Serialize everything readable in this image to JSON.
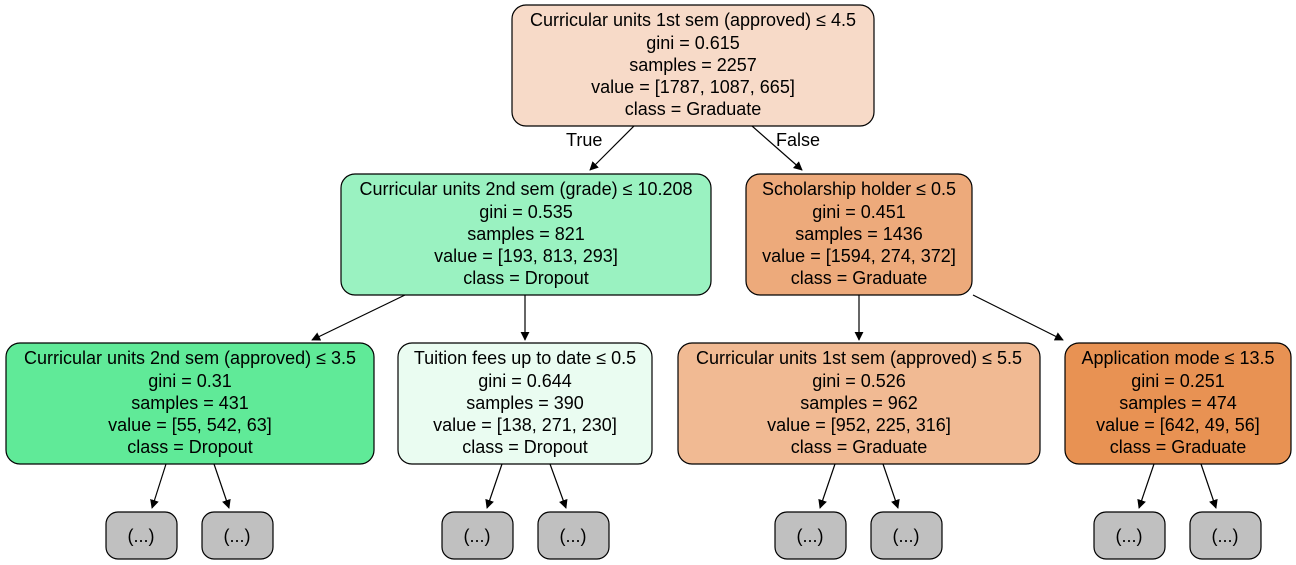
{
  "tree": {
    "nodes": [
      {
        "id": "n0",
        "lines": [
          "Curricular units 1st sem (approved) ≤ 4.5",
          "gini = 0.615",
          "samples = 2257",
          "value = [1787, 1087, 665]",
          "class = Graduate"
        ],
        "fill": "#f7dac8"
      },
      {
        "id": "n1",
        "lines": [
          "Curricular units 2nd sem (grade) ≤ 10.208",
          "gini = 0.535",
          "samples = 821",
          "value = [193, 813, 293]",
          "class = Dropout"
        ],
        "fill": "#9af2c1"
      },
      {
        "id": "n2",
        "lines": [
          "Scholarship holder ≤ 0.5",
          "gini = 0.451",
          "samples = 1436",
          "value = [1594, 274, 372]",
          "class = Graduate"
        ],
        "fill": "#edaa7b"
      },
      {
        "id": "n3",
        "lines": [
          "Curricular units 2nd sem (approved) ≤ 3.5",
          "gini = 0.31",
          "samples = 431",
          "value = [55, 542, 63]",
          "class = Dropout"
        ],
        "fill": "#60ea98"
      },
      {
        "id": "n4",
        "lines": [
          "Tuition fees up to date ≤ 0.5",
          "gini = 0.644",
          "samples = 390",
          "value = [138, 271, 230]",
          "class = Dropout"
        ],
        "fill": "#eafcf1"
      },
      {
        "id": "n5",
        "lines": [
          "Curricular units 1st sem (approved) ≤ 5.5",
          "gini = 0.526",
          "samples = 962",
          "value = [952, 225, 316]",
          "class = Graduate"
        ],
        "fill": "#f1ba93"
      },
      {
        "id": "n6",
        "lines": [
          "Application mode ≤ 13.5",
          "gini = 0.251",
          "samples = 474",
          "value = [642, 49, 56]",
          "class = Graduate"
        ],
        "fill": "#e89253"
      }
    ],
    "truncated_label": "(...)",
    "truncated_fill": "#c0c0c0",
    "edge_labels": {
      "true_label": "True",
      "false_label": "False"
    }
  }
}
